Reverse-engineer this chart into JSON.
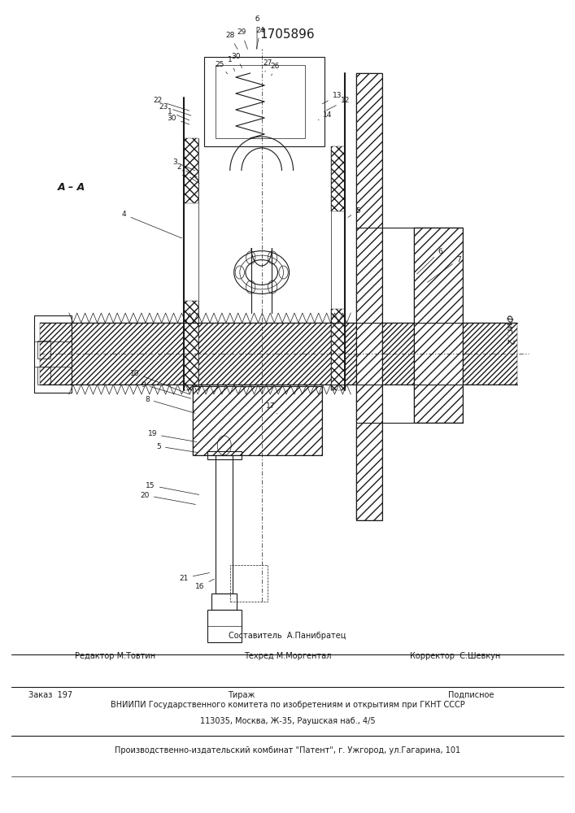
{
  "patent_number": "1705896",
  "fig_label": "Фиг. 2",
  "section_label": "А – А",
  "footer_line1_left": "Редактор М.Товтин",
  "footer_line1_center_top": "Составитель  А.Панибратец",
  "footer_line1_center": "Техред М.Моргентал",
  "footer_line1_right": "Корректор  С.Шевкун",
  "footer_line2_col1": "Заказ  197",
  "footer_line2_col2": "Тираж",
  "footer_line2_col3": "Подписное",
  "footer_line3": "ВНИИПИ Государственного комитета по изобретениям и открытиям при ГКНТ СССР",
  "footer_line4": "113035, Москва, Ж-35, Раушская наб., 4/5",
  "footer_line5": "Производственно-издательский комбинат \"Патент\", г. Ужгород, ул.Гагарина, 101",
  "bg_color": "#ffffff",
  "line_color": "#1a1a1a",
  "text_color": "#1a1a1a",
  "font_size_patent": 11,
  "font_size_footer": 7
}
